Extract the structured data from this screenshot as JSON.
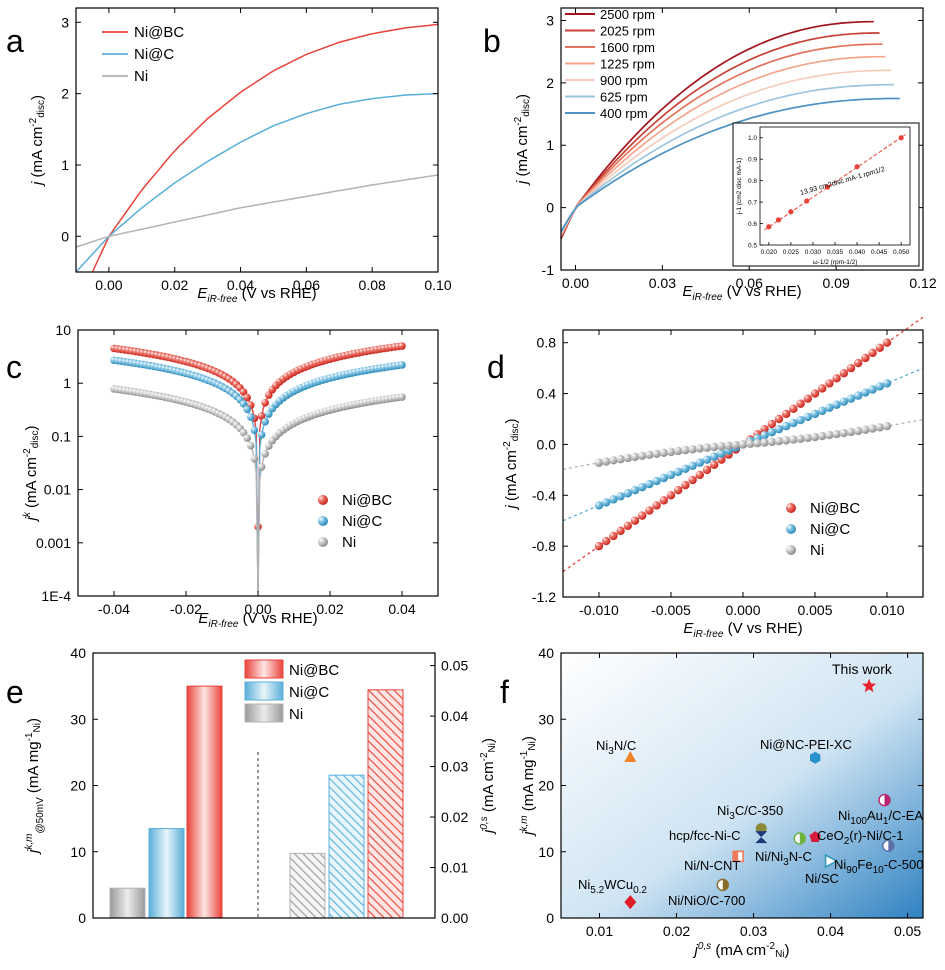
{
  "panels": {
    "a": "a",
    "b": "b",
    "c": "c",
    "d": "d",
    "e": "e",
    "f": "f"
  },
  "colors": {
    "nibc": "#e8433b",
    "nic": "#5aafd8",
    "ni": "#b3b3b3",
    "rpm": [
      "#a3141c",
      "#c84236",
      "#e3735a",
      "#f4a68c",
      "#f6cdbd",
      "#cfe3f0",
      "#9cc5e0",
      "#4e93c3"
    ]
  },
  "chart_data": [
    {
      "id": "a",
      "type": "line",
      "xlabel": "E_iR-free (V vs RHE)",
      "ylabel": "j (mA cm-2 disc)",
      "xlim": [
        -0.01,
        0.1
      ],
      "ylim": [
        -0.5,
        3.2
      ],
      "xticks": [
        "0.00",
        "0.02",
        "0.04",
        "0.06",
        "0.08",
        "0.10"
      ],
      "yticks": [
        "0",
        "1",
        "2",
        "3"
      ],
      "legend_position": "top-left",
      "series": [
        {
          "name": "Ni@BC",
          "x": [
            -0.005,
            0,
            0.01,
            0.02,
            0.03,
            0.04,
            0.05,
            0.06,
            0.07,
            0.08,
            0.09,
            0.1
          ],
          "y": [
            -0.5,
            0.0,
            0.65,
            1.2,
            1.65,
            2.02,
            2.32,
            2.55,
            2.72,
            2.84,
            2.92,
            2.97
          ]
        },
        {
          "name": "Ni@C",
          "x": [
            -0.01,
            0,
            0.01,
            0.02,
            0.03,
            0.04,
            0.05,
            0.06,
            0.07,
            0.08,
            0.09,
            0.1
          ],
          "y": [
            -0.5,
            0.0,
            0.4,
            0.75,
            1.05,
            1.32,
            1.55,
            1.72,
            1.85,
            1.93,
            1.98,
            2.0
          ]
        },
        {
          "name": "Ni",
          "x": [
            -0.01,
            0,
            0.02,
            0.04,
            0.06,
            0.08,
            0.1
          ],
          "y": [
            -0.15,
            0.0,
            0.2,
            0.4,
            0.56,
            0.72,
            0.86
          ]
        }
      ]
    },
    {
      "id": "b",
      "type": "line",
      "xlabel": "E_iR-free (V vs RHE)",
      "ylabel": "j (mA cm-2 disc)",
      "xlim": [
        -0.005,
        0.12
      ],
      "ylim": [
        -1,
        3.2
      ],
      "xticks": [
        "0.00",
        "0.03",
        "0.06",
        "0.09",
        "0.12"
      ],
      "yticks": [
        "-1",
        "0",
        "1",
        "2",
        "3"
      ],
      "legend_position": "top-left",
      "series": [
        {
          "name": "2500 rpm",
          "end": [
            0.103,
            2.98
          ],
          "mid": [
            0.02,
            1.2
          ]
        },
        {
          "name": "2025 rpm",
          "end": [
            0.105,
            2.8
          ],
          "mid": [
            0.02,
            1.12
          ]
        },
        {
          "name": "1600 rpm",
          "end": [
            0.106,
            2.62
          ],
          "mid": [
            0.02,
            1.05
          ]
        },
        {
          "name": "1225 rpm",
          "end": [
            0.107,
            2.42
          ],
          "mid": [
            0.02,
            0.98
          ]
        },
        {
          "name": "900 rpm",
          "end": [
            0.109,
            2.2
          ],
          "mid": [
            0.02,
            0.92
          ]
        },
        {
          "name": "625 rpm",
          "end": [
            0.11,
            1.97
          ],
          "mid": [
            0.02,
            0.85
          ]
        },
        {
          "name": "400 rpm",
          "end": [
            0.112,
            1.75
          ],
          "mid": [
            0.02,
            0.78
          ]
        }
      ],
      "inset": {
        "xlabel": "ω-1/2 (rpm-1/2)",
        "ylabel": "j-1 (cm2 disc mA-1)",
        "annotation": "13.93 cm2disc mA-1 rpm1/2",
        "xlim": [
          0.018,
          0.052
        ],
        "ylim": [
          0.5,
          1.05
        ],
        "xticks": [
          "0.020",
          "0.025",
          "0.030",
          "0.035",
          "0.040",
          "0.045",
          "0.050"
        ],
        "yticks": [
          "0.5",
          "0.6",
          "0.7",
          "0.8",
          "0.9",
          "1.0"
        ],
        "x": [
          0.02,
          0.0222,
          0.025,
          0.0286,
          0.0333,
          0.04,
          0.05
        ],
        "y": [
          0.585,
          0.617,
          0.655,
          0.705,
          0.77,
          0.865,
          1.0
        ]
      }
    },
    {
      "id": "c",
      "type": "scatter",
      "scale": "log",
      "xlabel": "E_iR-free (V vs RHE)",
      "ylabel": "j^k (mA cm-2 disc)",
      "xlim": [
        -0.05,
        0.05
      ],
      "ylim_log10": [
        -4,
        1
      ],
      "xticks": [
        "-0.04",
        "-0.02",
        "0.00",
        "0.02",
        "0.04"
      ],
      "yticks": [
        "10",
        "1",
        "0.1",
        "0.01",
        "0.001",
        "1E-4"
      ],
      "legend_position": "lower-right",
      "series": [
        {
          "name": "Ni@BC",
          "left": 4.5,
          "right": 5.0
        },
        {
          "name": "Ni@C",
          "left": 2.7,
          "right": 2.2
        },
        {
          "name": "Ni",
          "left": 0.78,
          "right": 0.55
        }
      ]
    },
    {
      "id": "d",
      "type": "scatter",
      "xlabel": "E_iR-free (V vs RHE)",
      "ylabel": "j (mA cm-2 disc)",
      "xlim": [
        -0.0125,
        0.0125
      ],
      "ylim": [
        -1.2,
        0.9
      ],
      "xticks": [
        "-0.010",
        "-0.005",
        "0.000",
        "0.005",
        "0.010"
      ],
      "yticks": [
        "0.8",
        "0.4",
        "0.0",
        "-0.4",
        "-0.8",
        "-1.2"
      ],
      "legend_position": "lower-right",
      "series": [
        {
          "name": "Ni@BC",
          "slope": 80,
          "curv": 0
        },
        {
          "name": "Ni@C",
          "slope": 48,
          "curv": 0
        },
        {
          "name": "Ni",
          "slope": 9,
          "curv": 0.12
        }
      ]
    },
    {
      "id": "e",
      "type": "bar",
      "ylabel_left": "j k,m @50mV (mA mg-1 Ni)",
      "ylabel_right": "j 0,s (mA cm-2 Ni)",
      "ylim_left": [
        0,
        40
      ],
      "ylim_right": [
        0,
        0.0525
      ],
      "yticks_left": [
        "0",
        "10",
        "20",
        "30",
        "40"
      ],
      "yticks_right": [
        "0.00",
        "0.01",
        "0.02",
        "0.03",
        "0.04",
        "0.05"
      ],
      "legend_position": "top-center",
      "series": [
        {
          "name": "Ni",
          "mass_activity": 4.5,
          "exchange_current": 0.0128
        },
        {
          "name": "Ni@C",
          "mass_activity": 13.5,
          "exchange_current": 0.0283
        },
        {
          "name": "Ni@BC",
          "mass_activity": 35,
          "exchange_current": 0.0452
        }
      ]
    },
    {
      "id": "f",
      "type": "scatter",
      "xlabel": "j 0,s (mA cm-2 Ni)",
      "ylabel": "j k,m (mA mg-1 Ni)",
      "xlim": [
        0.005,
        0.052
      ],
      "ylim": [
        0,
        40
      ],
      "xticks": [
        "0.01",
        "0.02",
        "0.03",
        "0.04",
        "0.05"
      ],
      "yticks": [
        "0",
        "10",
        "20",
        "30",
        "40"
      ],
      "points": [
        {
          "label": "This work",
          "x": 0.045,
          "y": 35,
          "color": "#e8222a",
          "marker": "star"
        },
        {
          "label": "Ni3N/C",
          "x": 0.014,
          "y": 24.3,
          "color": "#f0832a",
          "marker": "triangle"
        },
        {
          "label": "Ni@NC-PEI-XC",
          "x": 0.038,
          "y": 24.2,
          "color": "#2a91cf",
          "marker": "hexagon"
        },
        {
          "label": "Ni3C/C-350",
          "x": 0.031,
          "y": 13.5,
          "color": "#8a8a3a",
          "marker": "circle"
        },
        {
          "label": "Ni100Au1/C-EA",
          "x": 0.047,
          "y": 17.8,
          "color": "#b8256c",
          "marker": "half"
        },
        {
          "label": "hcp/fcc-Ni-C",
          "x": 0.031,
          "y": 12.2,
          "color": "#1e3a78",
          "marker": "bowtie"
        },
        {
          "label": "CeO2(r)-Ni/C-1",
          "x": 0.038,
          "y": 12.2,
          "color": "#d81b3c",
          "marker": "pentagon"
        },
        {
          "label": "Ni/Ni3N-C",
          "x": 0.036,
          "y": 12.0,
          "color": "#6cb33f",
          "marker": "half"
        },
        {
          "label": "Ni90Fe10-C-500",
          "x": 0.0475,
          "y": 10.9,
          "color": "#5a6fa8",
          "marker": "half"
        },
        {
          "label": "Ni/N-CNT",
          "x": 0.028,
          "y": 9.3,
          "color": "#f07a5a",
          "marker": "square"
        },
        {
          "label": "Ni/SC",
          "x": 0.04,
          "y": 8.6,
          "color": "#2f9cbc",
          "marker": "triangle-right"
        },
        {
          "label": "Ni5.2WCu0.2",
          "x": 0.014,
          "y": 2.4,
          "color": "#e21b2b",
          "marker": "diamond"
        },
        {
          "label": "Ni/NiO/C-700",
          "x": 0.026,
          "y": 5.0,
          "color": "#8a6b2a",
          "marker": "half"
        }
      ]
    }
  ]
}
